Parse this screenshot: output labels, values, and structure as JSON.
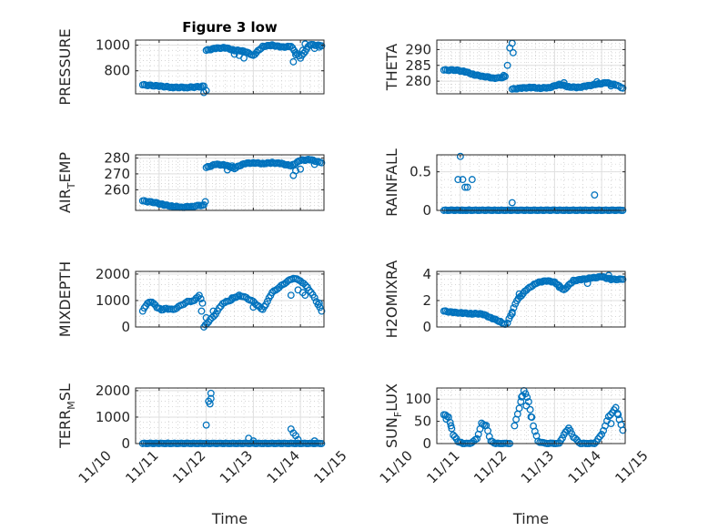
{
  "figure": {
    "background": "#ffffff",
    "marker_color": "#0072bd",
    "marker": "open-circle",
    "x_tick_labels": [
      "11/10",
      "11/11",
      "11/12",
      "11/13",
      "11/14",
      "11/15"
    ],
    "x_label": "Time"
  },
  "chart_data": [
    {
      "type": "scatter",
      "title": "Figure 3 low",
      "ylabel": "PRESSURE",
      "ylabel_sub": "",
      "ylabel_suffix": "",
      "xlim": [
        10.5,
        14.5
      ],
      "ylim": [
        620,
        1040
      ],
      "yticks": [
        800,
        1000
      ],
      "yticklabels": [
        "800",
        "1000"
      ],
      "x_tick_labels_visible": false,
      "grid": true,
      "segments": [
        {
          "x": [
            10.65,
            11.0,
            11.3,
            11.6,
            11.85,
            11.95
          ],
          "y": [
            690,
            680,
            670,
            670,
            675,
            680
          ]
        },
        {
          "x": [
            11.95,
            12.0
          ],
          "y": [
            630,
            645
          ]
        },
        {
          "x": [
            12.0,
            12.2,
            12.4,
            12.6,
            12.8,
            13.0,
            13.2,
            13.4,
            13.6,
            13.8,
            14.0,
            14.2,
            14.45
          ],
          "y": [
            960,
            975,
            980,
            960,
            955,
            920,
            990,
            1000,
            985,
            990,
            900,
            1005,
            995
          ]
        }
      ],
      "extra_points": [
        {
          "x": 12.6,
          "y": 930
        },
        {
          "x": 12.7,
          "y": 920
        },
        {
          "x": 12.8,
          "y": 900
        },
        {
          "x": 13.85,
          "y": 870
        },
        {
          "x": 13.9,
          "y": 925
        },
        {
          "x": 14.05,
          "y": 960
        },
        {
          "x": 14.1,
          "y": 1010
        },
        {
          "x": 14.3,
          "y": 975
        },
        {
          "x": 14.4,
          "y": 985
        }
      ]
    },
    {
      "type": "scatter",
      "title": "",
      "ylabel": "THETA",
      "ylabel_sub": "",
      "ylabel_suffix": "",
      "xlim": [
        10.5,
        14.5
      ],
      "ylim": [
        276,
        293
      ],
      "yticks": [
        280,
        285,
        290
      ],
      "yticklabels": [
        "280",
        "285",
        "290"
      ],
      "x_tick_labels_visible": false,
      "grid": true,
      "segments": [
        {
          "x": [
            10.65,
            10.9,
            11.1,
            11.3,
            11.5,
            11.7,
            11.85,
            11.95
          ],
          "y": [
            283.5,
            283.5,
            283.0,
            282.0,
            281.5,
            281.0,
            281.0,
            281.5
          ]
        },
        {
          "x": [
            12.1,
            12.3,
            12.5,
            12.7,
            12.9,
            13.1,
            13.3,
            13.5,
            13.7,
            13.9,
            14.1,
            14.3,
            14.45
          ],
          "y": [
            277.5,
            277.8,
            278.0,
            277.8,
            278.0,
            279.0,
            278.2,
            278.0,
            278.5,
            279.0,
            279.5,
            278.8,
            277.8
          ]
        }
      ],
      "extra_points": [
        {
          "x": 11.92,
          "y": 281.8
        },
        {
          "x": 12.0,
          "y": 285.0
        },
        {
          "x": 12.05,
          "y": 290.5
        },
        {
          "x": 12.1,
          "y": 292.0
        },
        {
          "x": 12.12,
          "y": 289.0
        },
        {
          "x": 13.2,
          "y": 279.5
        },
        {
          "x": 13.9,
          "y": 279.8
        },
        {
          "x": 14.2,
          "y": 278.5
        }
      ]
    },
    {
      "type": "scatter",
      "title": "",
      "ylabel": "AIR",
      "ylabel_sub": "T",
      "ylabel_suffix": "EMP",
      "xlim": [
        10.5,
        14.5
      ],
      "ylim": [
        247,
        282
      ],
      "yticks": [
        260,
        270,
        280
      ],
      "yticklabels": [
        "260",
        "270",
        "280"
      ],
      "x_tick_labels_visible": false,
      "grid": true,
      "segments": [
        {
          "x": [
            10.65,
            10.9,
            11.1,
            11.3,
            11.5,
            11.7,
            11.85,
            11.95
          ],
          "y": [
            253.0,
            252.0,
            250.5,
            249.5,
            249.0,
            249.5,
            250.0,
            250.5
          ]
        },
        {
          "x": [
            12.0,
            12.2,
            12.4,
            12.6,
            12.8,
            13.0,
            13.2,
            13.4,
            13.6,
            13.8,
            14.0,
            14.2,
            14.45
          ],
          "y": [
            274.0,
            276.0,
            275.5,
            273.5,
            276.5,
            277.0,
            276.5,
            277.0,
            276.5,
            275.0,
            278.5,
            279.0,
            277.0
          ]
        }
      ],
      "extra_points": [
        {
          "x": 11.98,
          "y": 252.5
        },
        {
          "x": 12.45,
          "y": 272.5
        },
        {
          "x": 12.55,
          "y": 275.0
        },
        {
          "x": 13.85,
          "y": 269.0
        },
        {
          "x": 13.9,
          "y": 272.0
        },
        {
          "x": 14.0,
          "y": 273.0
        },
        {
          "x": 14.3,
          "y": 276.0
        }
      ]
    },
    {
      "type": "scatter",
      "title": "",
      "ylabel": "RAINFALL",
      "ylabel_sub": "",
      "ylabel_suffix": "",
      "xlim": [
        10.5,
        14.5
      ],
      "ylim": [
        0,
        0.72
      ],
      "yticks": [
        0,
        0.5
      ],
      "yticklabels": [
        "0",
        "0.5"
      ],
      "x_tick_labels_visible": false,
      "grid": true,
      "segments": [
        {
          "x": [
            10.65,
            11.0,
            11.4,
            11.8,
            12.2,
            12.6,
            13.0,
            13.4,
            13.8,
            14.2,
            14.45
          ],
          "y": [
            0,
            0,
            0,
            0,
            0,
            0,
            0,
            0,
            0,
            0,
            0
          ]
        }
      ],
      "extra_points": [
        {
          "x": 10.95,
          "y": 0.4
        },
        {
          "x": 11.0,
          "y": 0.7
        },
        {
          "x": 11.05,
          "y": 0.4
        },
        {
          "x": 11.1,
          "y": 0.3
        },
        {
          "x": 11.15,
          "y": 0.3
        },
        {
          "x": 11.25,
          "y": 0.4
        },
        {
          "x": 11.05,
          "y": 0.0
        },
        {
          "x": 12.1,
          "y": 0.1
        },
        {
          "x": 13.85,
          "y": 0.2
        }
      ]
    },
    {
      "type": "scatter",
      "title": "",
      "ylabel": "MIXDEPTH",
      "ylabel_sub": "",
      "ylabel_suffix": "",
      "xlim": [
        10.5,
        14.5
      ],
      "ylim": [
        0,
        2100
      ],
      "yticks": [
        0,
        1000,
        2000
      ],
      "yticklabels": [
        "0",
        "1000",
        "2000"
      ],
      "x_tick_labels_visible": false,
      "grid": true,
      "segments": [
        {
          "x": [
            10.65,
            10.75,
            10.85,
            10.95,
            11.05,
            11.15,
            11.3,
            11.45,
            11.6,
            11.75,
            11.85,
            11.92
          ],
          "y": [
            600,
            900,
            950,
            750,
            650,
            700,
            650,
            800,
            950,
            1000,
            1200,
            900
          ]
        },
        {
          "x": [
            11.95,
            12.05,
            12.2,
            12.35,
            12.5,
            12.7,
            12.85,
            13.0,
            13.2,
            13.4,
            13.55,
            13.7,
            13.85,
            14.0,
            14.15,
            14.3,
            14.45
          ],
          "y": [
            0,
            200,
            500,
            900,
            1000,
            1200,
            1100,
            950,
            650,
            1300,
            1500,
            1700,
            1850,
            1750,
            1500,
            1100,
            600
          ]
        }
      ],
      "extra_points": [
        {
          "x": 11.9,
          "y": 600
        },
        {
          "x": 12.0,
          "y": 350
        },
        {
          "x": 12.15,
          "y": 600
        },
        {
          "x": 12.55,
          "y": 1100
        },
        {
          "x": 13.0,
          "y": 750
        },
        {
          "x": 13.8,
          "y": 1200
        },
        {
          "x": 13.95,
          "y": 1400
        },
        {
          "x": 14.05,
          "y": 1300
        },
        {
          "x": 14.1,
          "y": 1200
        },
        {
          "x": 14.4,
          "y": 900
        }
      ]
    },
    {
      "type": "scatter",
      "title": "",
      "ylabel": "H2OMIXRA",
      "ylabel_sub": "",
      "ylabel_suffix": "",
      "xlim": [
        10.5,
        14.5
      ],
      "ylim": [
        0,
        4.2
      ],
      "yticks": [
        0,
        2,
        4
      ],
      "yticklabels": [
        "0",
        "2",
        "4"
      ],
      "x_tick_labels_visible": false,
      "grid": true,
      "segments": [
        {
          "x": [
            10.65,
            10.85,
            11.05,
            11.25,
            11.45,
            11.65,
            11.85,
            11.95
          ],
          "y": [
            1.2,
            1.1,
            1.05,
            1.0,
            1.0,
            0.7,
            0.4,
            0.2
          ]
        },
        {
          "x": [
            12.0,
            12.2,
            12.4,
            12.6,
            12.8,
            13.0,
            13.2,
            13.4,
            13.6,
            13.8,
            14.0,
            14.2,
            14.45
          ],
          "y": [
            0.3,
            2.0,
            2.8,
            3.3,
            3.5,
            3.4,
            2.8,
            3.5,
            3.6,
            3.7,
            3.8,
            3.6,
            3.6
          ]
        }
      ],
      "extra_points": [
        {
          "x": 12.1,
          "y": 1.0
        },
        {
          "x": 12.25,
          "y": 2.5
        },
        {
          "x": 13.1,
          "y": 3.0
        },
        {
          "x": 13.7,
          "y": 3.3
        },
        {
          "x": 14.15,
          "y": 3.9
        }
      ]
    },
    {
      "type": "scatter",
      "title": "",
      "ylabel": "TERR",
      "ylabel_sub": "M",
      "ylabel_suffix": "SL",
      "xlim": [
        10.5,
        14.5
      ],
      "ylim": [
        0,
        2100
      ],
      "yticks": [
        0,
        1000,
        2000
      ],
      "yticklabels": [
        "0",
        "1000",
        "2000"
      ],
      "x_tick_labels_visible": true,
      "grid": true,
      "segments": [
        {
          "x": [
            10.65,
            11.0,
            11.4,
            11.8,
            12.2,
            12.6,
            13.0,
            13.4,
            13.8,
            14.2,
            14.45
          ],
          "y": [
            0,
            0,
            0,
            0,
            0,
            0,
            0,
            0,
            0,
            0,
            0
          ]
        }
      ],
      "extra_points": [
        {
          "x": 12.0,
          "y": 700
        },
        {
          "x": 12.05,
          "y": 1600
        },
        {
          "x": 12.08,
          "y": 1500
        },
        {
          "x": 12.1,
          "y": 1900
        },
        {
          "x": 12.1,
          "y": 1700
        },
        {
          "x": 12.9,
          "y": 200
        },
        {
          "x": 13.0,
          "y": 100
        },
        {
          "x": 13.8,
          "y": 550
        },
        {
          "x": 13.85,
          "y": 400
        },
        {
          "x": 13.9,
          "y": 300
        },
        {
          "x": 13.95,
          "y": 150
        },
        {
          "x": 14.3,
          "y": 100
        }
      ]
    },
    {
      "type": "scatter",
      "title": "",
      "ylabel": "SUN",
      "ylabel_sub": "F",
      "ylabel_suffix": "LUX",
      "xlim": [
        10.5,
        14.5
      ],
      "ylim": [
        0,
        125
      ],
      "yticks": [
        0,
        50,
        100
      ],
      "yticklabels": [
        "0",
        "50",
        "100"
      ],
      "x_tick_labels_visible": true,
      "grid": true,
      "segments": [
        {
          "x": [
            10.65,
            10.75,
            10.85,
            10.95,
            11.05,
            11.2,
            11.35,
            11.45,
            11.55,
            11.65,
            11.75,
            11.9,
            12.05
          ],
          "y": [
            65,
            60,
            20,
            5,
            0,
            0,
            10,
            45,
            40,
            5,
            0,
            0,
            0
          ]
        },
        {
          "x": [
            12.15,
            12.25,
            12.35,
            12.45,
            12.55,
            12.65,
            12.8,
            12.95,
            13.1,
            13.2,
            13.3,
            13.4,
            13.55,
            13.7,
            13.85,
            14.0,
            14.15,
            14.3,
            14.45
          ],
          "y": [
            40,
            80,
            120,
            95,
            40,
            5,
            0,
            0,
            0,
            20,
            35,
            15,
            0,
            0,
            0,
            20,
            60,
            80,
            30
          ]
        }
      ],
      "extra_points": [
        {
          "x": 10.7,
          "y": 55
        },
        {
          "x": 10.8,
          "y": 40
        },
        {
          "x": 12.3,
          "y": 105
        },
        {
          "x": 12.4,
          "y": 85
        },
        {
          "x": 12.5,
          "y": 60
        },
        {
          "x": 14.2,
          "y": 45
        },
        {
          "x": 14.35,
          "y": 65
        }
      ]
    }
  ]
}
